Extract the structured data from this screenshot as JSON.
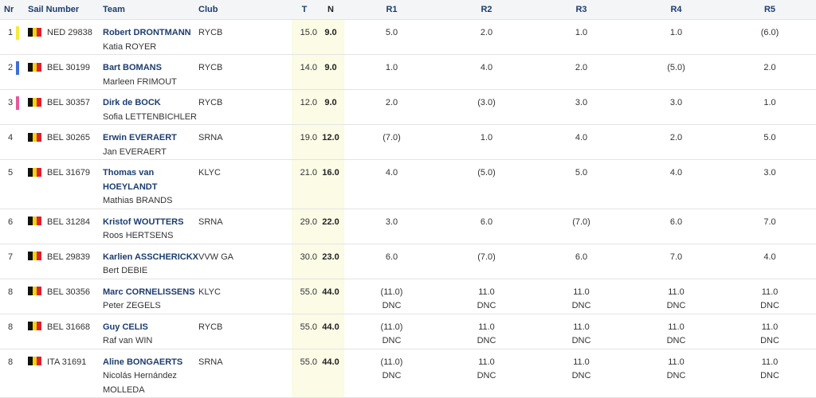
{
  "colors": {
    "header_text": "#1c3d6e",
    "highlight_bg": "#fbfbe6",
    "yellow_marker": "#f5ea3b",
    "blue_marker": "#3d6fd6",
    "pink_marker": "#e6589a"
  },
  "headers": {
    "nr": "Nr",
    "sail": "Sail Number",
    "team": "Team",
    "club": "Club",
    "t": "T",
    "n": "N",
    "r1": "R1",
    "r2": "R2",
    "r3": "R3",
    "r4": "R4",
    "r5": "R5"
  },
  "rows": [
    {
      "nr": "1",
      "marker": "yellow",
      "flag": "BEL",
      "sail": "NED 29838",
      "helm": "Robert DRONTMANN",
      "crew": "Katia ROYER",
      "club": "RYCB",
      "t": "15.0",
      "n": "9.0",
      "r": [
        [
          "5.0",
          ""
        ],
        [
          "2.0",
          ""
        ],
        [
          "1.0",
          ""
        ],
        [
          "1.0",
          ""
        ],
        [
          "(6.0)",
          ""
        ]
      ]
    },
    {
      "nr": "2",
      "marker": "blue",
      "flag": "BEL",
      "sail": "BEL 30199",
      "helm": "Bart BOMANS",
      "crew": "Marleen FRIMOUT",
      "club": "RYCB",
      "t": "14.0",
      "n": "9.0",
      "r": [
        [
          "1.0",
          ""
        ],
        [
          "4.0",
          ""
        ],
        [
          "2.0",
          ""
        ],
        [
          "(5.0)",
          ""
        ],
        [
          "2.0",
          ""
        ]
      ]
    },
    {
      "nr": "3",
      "marker": "pink",
      "flag": "BEL",
      "sail": "BEL 30357",
      "helm": "Dirk de BOCK",
      "crew": "Sofia LETTENBICHLER",
      "club": "RYCB",
      "t": "12.0",
      "n": "9.0",
      "r": [
        [
          "2.0",
          ""
        ],
        [
          "(3.0)",
          ""
        ],
        [
          "3.0",
          ""
        ],
        [
          "3.0",
          ""
        ],
        [
          "1.0",
          ""
        ]
      ]
    },
    {
      "nr": "4",
      "marker": "",
      "flag": "BEL",
      "sail": "BEL 30265",
      "helm": "Erwin EVERAERT",
      "crew": "Jan EVERAERT",
      "club": "SRNA",
      "t": "19.0",
      "n": "12.0",
      "r": [
        [
          "(7.0)",
          ""
        ],
        [
          "1.0",
          ""
        ],
        [
          "4.0",
          ""
        ],
        [
          "2.0",
          ""
        ],
        [
          "5.0",
          ""
        ]
      ]
    },
    {
      "nr": "5",
      "marker": "",
      "flag": "BEL",
      "sail": "BEL 31679",
      "helm": "Thomas van HOEYLANDT",
      "crew": "Mathias BRANDS",
      "club": "KLYC",
      "t": "21.0",
      "n": "16.0",
      "r": [
        [
          "4.0",
          ""
        ],
        [
          "(5.0)",
          ""
        ],
        [
          "5.0",
          ""
        ],
        [
          "4.0",
          ""
        ],
        [
          "3.0",
          ""
        ]
      ]
    },
    {
      "nr": "6",
      "marker": "",
      "flag": "BEL",
      "sail": "BEL 31284",
      "helm": "Kristof WOUTTERS",
      "crew": "Roos HERTSENS",
      "club": "SRNA",
      "t": "29.0",
      "n": "22.0",
      "r": [
        [
          "3.0",
          ""
        ],
        [
          "6.0",
          ""
        ],
        [
          "(7.0)",
          ""
        ],
        [
          "6.0",
          ""
        ],
        [
          "7.0",
          ""
        ]
      ]
    },
    {
      "nr": "7",
      "marker": "",
      "flag": "BEL",
      "sail": "BEL 29839",
      "helm": "Karlien ASSCHERICKX",
      "crew": "Bert DEBIE",
      "club": "VVW GA",
      "t": "30.0",
      "n": "23.0",
      "r": [
        [
          "6.0",
          ""
        ],
        [
          "(7.0)",
          ""
        ],
        [
          "6.0",
          ""
        ],
        [
          "7.0",
          ""
        ],
        [
          "4.0",
          ""
        ]
      ]
    },
    {
      "nr": "8",
      "marker": "",
      "flag": "BEL",
      "sail": "BEL 30356",
      "helm": "Marc CORNELISSENS",
      "crew": "Peter ZEGELS",
      "club": "KLYC",
      "t": "55.0",
      "n": "44.0",
      "r": [
        [
          "(11.0)",
          "DNC"
        ],
        [
          "11.0",
          "DNC"
        ],
        [
          "11.0",
          "DNC"
        ],
        [
          "11.0",
          "DNC"
        ],
        [
          "11.0",
          "DNC"
        ]
      ]
    },
    {
      "nr": "8",
      "marker": "",
      "flag": "BEL",
      "sail": "BEL 31668",
      "helm": "Guy CELIS",
      "crew": "Raf van WIN",
      "club": "RYCB",
      "t": "55.0",
      "n": "44.0",
      "r": [
        [
          "(11.0)",
          "DNC"
        ],
        [
          "11.0",
          "DNC"
        ],
        [
          "11.0",
          "DNC"
        ],
        [
          "11.0",
          "DNC"
        ],
        [
          "11.0",
          "DNC"
        ]
      ]
    },
    {
      "nr": "8",
      "marker": "",
      "flag": "BEL",
      "sail": "ITA 31691",
      "helm": "Aline BONGAERTS",
      "crew": "Nicolás Hernández MOLLEDA",
      "club": "SRNA",
      "t": "55.0",
      "n": "44.0",
      "r": [
        [
          "(11.0)",
          "DNC"
        ],
        [
          "11.0",
          "DNC"
        ],
        [
          "11.0",
          "DNC"
        ],
        [
          "11.0",
          "DNC"
        ],
        [
          "11.0",
          "DNC"
        ]
      ]
    }
  ]
}
